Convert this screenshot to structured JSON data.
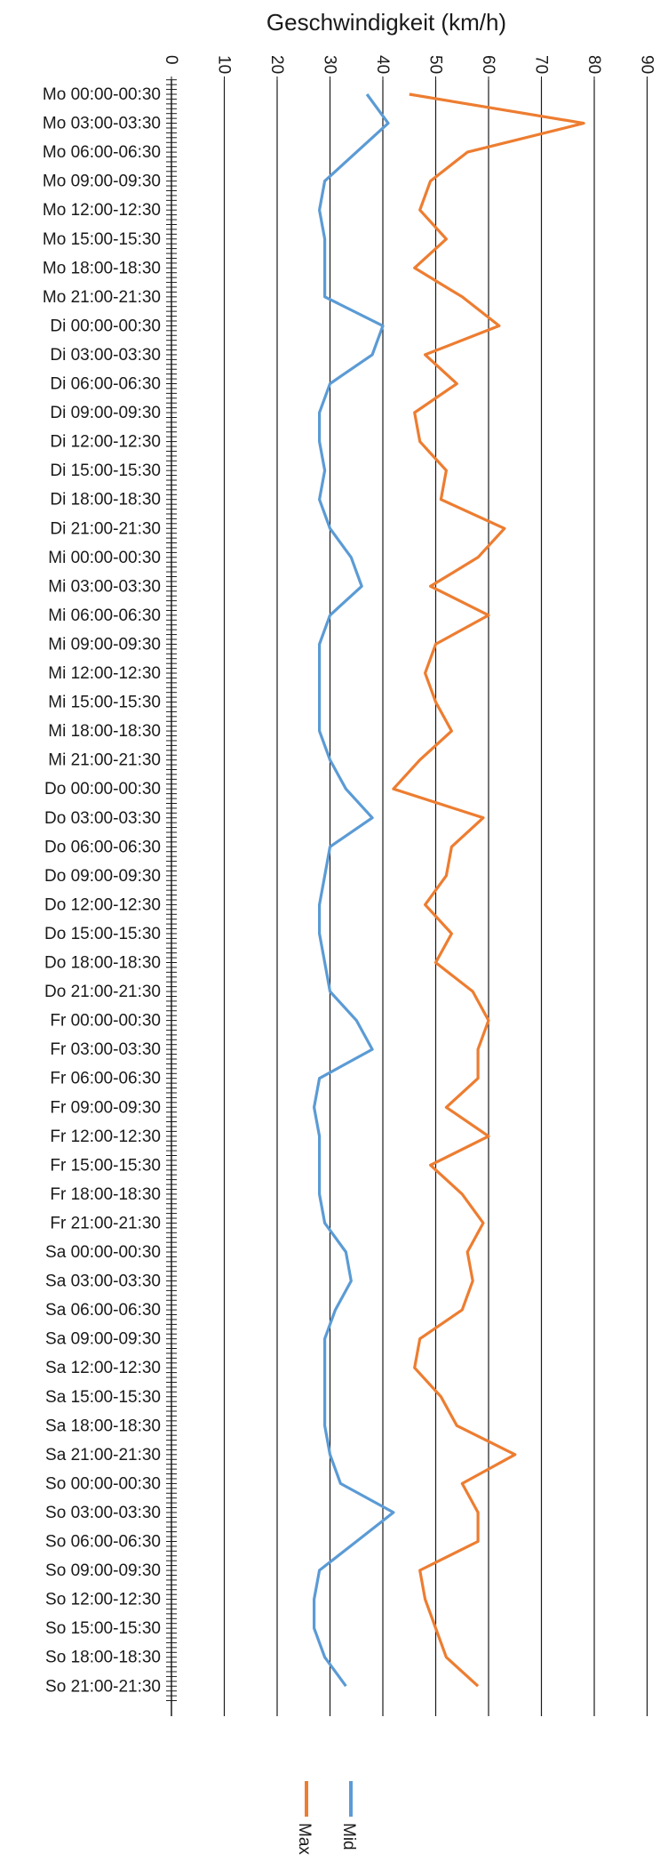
{
  "chart_data": {
    "type": "line",
    "orientation": "horizontal-values",
    "title": "",
    "xlabel": "Geschwindigkeit (km/h)",
    "ylabel": "",
    "xlim": [
      0,
      90
    ],
    "x_ticks": [
      0,
      10,
      20,
      30,
      40,
      50,
      60,
      70,
      80,
      90
    ],
    "grid": "vertical major gridlines",
    "legend_position": "bottom",
    "categories": [
      "Mo 00:00-00:30",
      "Mo 03:00-03:30",
      "Mo 06:00-06:30",
      "Mo 09:00-09:30",
      "Mo 12:00-12:30",
      "Mo 15:00-15:30",
      "Mo 18:00-18:30",
      "Mo 21:00-21:30",
      "Di 00:00-00:30",
      "Di 03:00-03:30",
      "Di 06:00-06:30",
      "Di 09:00-09:30",
      "Di 12:00-12:30",
      "Di 15:00-15:30",
      "Di 18:00-18:30",
      "Di 21:00-21:30",
      "Mi 00:00-00:30",
      "Mi 03:00-03:30",
      "Mi 06:00-06:30",
      "Mi 09:00-09:30",
      "Mi 12:00-12:30",
      "Mi 15:00-15:30",
      "Mi 18:00-18:30",
      "Mi 21:00-21:30",
      "Do 00:00-00:30",
      "Do 03:00-03:30",
      "Do 06:00-06:30",
      "Do 09:00-09:30",
      "Do 12:00-12:30",
      "Do 15:00-15:30",
      "Do 18:00-18:30",
      "Do 21:00-21:30",
      "Fr 00:00-00:30",
      "Fr 03:00-03:30",
      "Fr 06:00-06:30",
      "Fr 09:00-09:30",
      "Fr 12:00-12:30",
      "Fr 15:00-15:30",
      "Fr 18:00-18:30",
      "Fr 21:00-21:30",
      "Sa 00:00-00:30",
      "Sa 03:00-03:30",
      "Sa 06:00-06:30",
      "Sa 09:00-09:30",
      "Sa 12:00-12:30",
      "Sa 15:00-15:30",
      "Sa 18:00-18:30",
      "Sa 21:00-21:30",
      "So 00:00-00:30",
      "So 03:00-03:30",
      "So 06:00-06:30",
      "So 09:00-09:30",
      "So 12:00-12:30",
      "So 15:00-15:30",
      "So 18:00-18:30",
      "So 21:00-21:30"
    ],
    "series": [
      {
        "name": "Mid",
        "color": "#5b9bd5",
        "values": [
          37,
          41,
          35,
          29,
          28,
          29,
          29,
          29,
          40,
          38,
          30,
          28,
          28,
          29,
          28,
          30,
          34,
          36,
          30,
          28,
          28,
          28,
          28,
          30,
          33,
          38,
          30,
          29,
          28,
          28,
          29,
          30,
          35,
          38,
          28,
          27,
          28,
          28,
          28,
          29,
          33,
          34,
          31,
          29,
          29,
          29,
          29,
          30,
          32,
          42,
          35,
          28,
          27,
          27,
          29,
          33
        ]
      },
      {
        "name": "Max",
        "color": "#ed7d31",
        "values": [
          45,
          78,
          56,
          49,
          47,
          52,
          46,
          55,
          62,
          48,
          54,
          46,
          47,
          52,
          51,
          63,
          58,
          49,
          60,
          50,
          48,
          50,
          53,
          47,
          42,
          59,
          53,
          52,
          48,
          53,
          50,
          57,
          60,
          58,
          58,
          52,
          60,
          49,
          55,
          59,
          56,
          57,
          55,
          47,
          46,
          51,
          54,
          65,
          55,
          58,
          58,
          47,
          48,
          50,
          52,
          58
        ]
      }
    ]
  },
  "legend": {
    "mid_label": "Mid",
    "max_label": "Max",
    "mid_color": "#5b9bd5",
    "max_color": "#ed7d31"
  }
}
